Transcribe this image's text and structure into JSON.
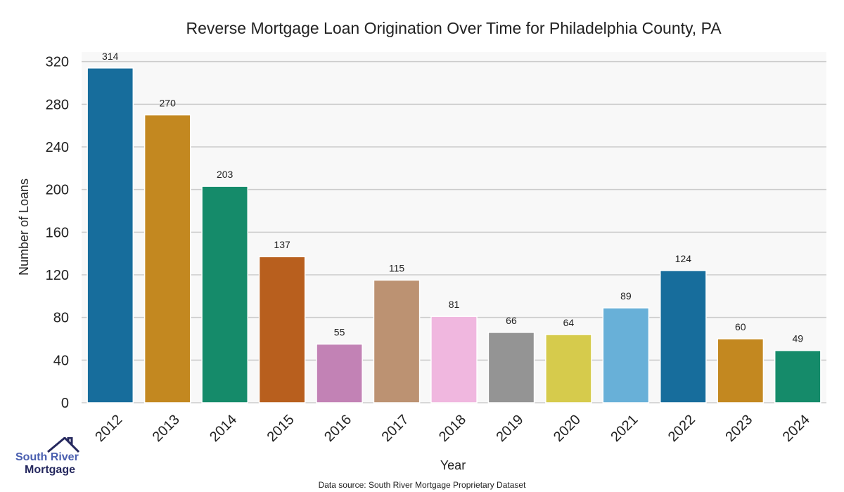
{
  "chart_data": {
    "type": "bar",
    "title": "Reverse Mortgage Loan Origination Over Time for Philadelphia County, PA",
    "xlabel": "Year",
    "ylabel": "Number of Loans",
    "categories": [
      "2012",
      "2013",
      "2014",
      "2015",
      "2016",
      "2017",
      "2018",
      "2019",
      "2020",
      "2021",
      "2022",
      "2023",
      "2024"
    ],
    "values": [
      314,
      270,
      203,
      137,
      55,
      115,
      81,
      66,
      64,
      89,
      124,
      60,
      49
    ],
    "colors": [
      "#176d9c",
      "#c38820",
      "#158b6a",
      "#b85f1e",
      "#c282b5",
      "#bc9272",
      "#f0b7df",
      "#949494",
      "#d6cb4c",
      "#68b0d8",
      "#176d9c",
      "#c38820",
      "#158b6a"
    ],
    "yticks": [
      0,
      40,
      80,
      120,
      160,
      200,
      240,
      280,
      320
    ],
    "ylim": [
      0,
      329
    ],
    "grid": true,
    "footnote": "Data source: South River Mortgage Proprietary Dataset"
  },
  "logo": {
    "line1": "South River",
    "line2": "Mortgage"
  }
}
